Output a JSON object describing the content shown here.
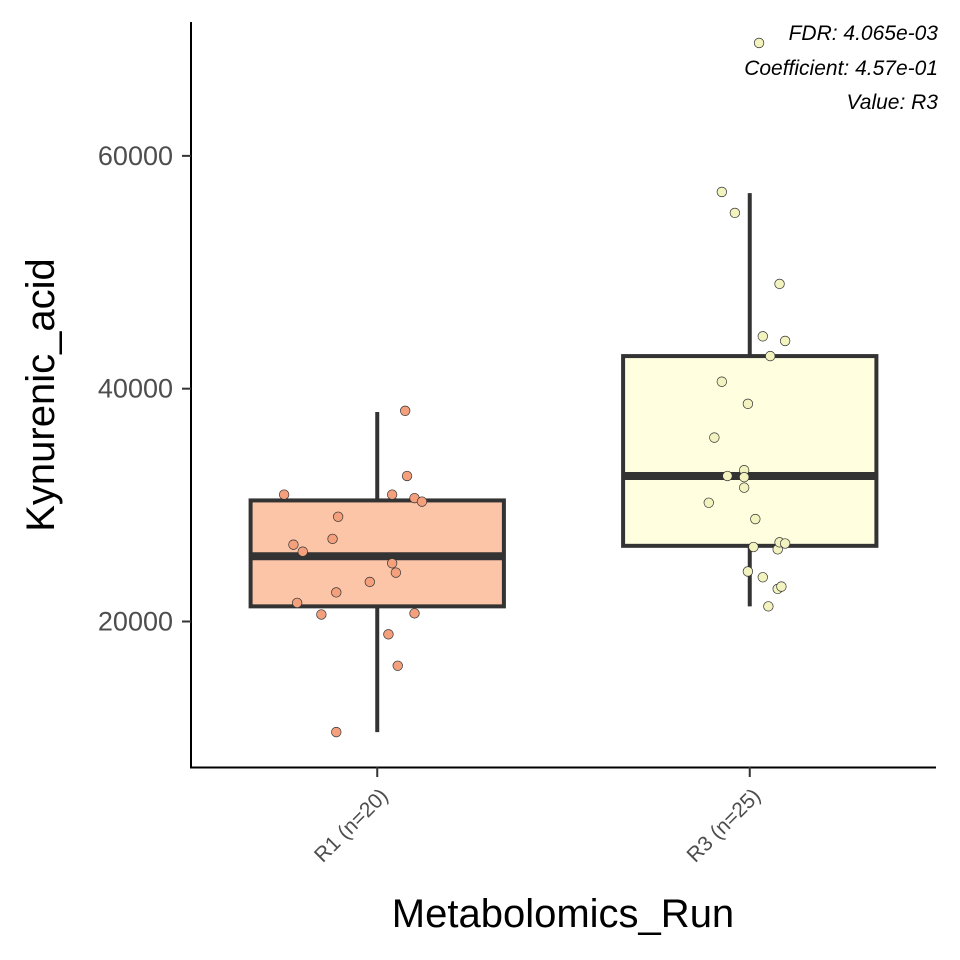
{
  "chart_data": {
    "type": "box",
    "xlabel": "Metabolomics_Run",
    "ylabel": "Kynurenic_acid",
    "ylim": [
      7500,
      71500
    ],
    "yticks": [
      20000,
      40000,
      60000
    ],
    "ytick_labels": [
      "20000",
      "40000",
      "60000"
    ],
    "grid": false,
    "annotations": [
      "FDR: 4.065e-03",
      "Coefficient: 4.57e-01",
      "Value: R3"
    ],
    "groups": [
      {
        "label": "R1 (n=20)",
        "color": "#FCC5A8",
        "point_color": "#F4A07C",
        "box": {
          "whisker_low": 10500,
          "q1": 21300,
          "median": 25600,
          "q3": 30400,
          "whisker_high": 38000
        },
        "points": [
          {
            "jitter": -0.5,
            "value": 30900
          },
          {
            "jitter": -0.45,
            "value": 26600
          },
          {
            "jitter": -0.4,
            "value": 26000
          },
          {
            "jitter": -0.43,
            "value": 21600
          },
          {
            "jitter": -0.3,
            "value": 20600
          },
          {
            "jitter": -0.21,
            "value": 29000
          },
          {
            "jitter": -0.22,
            "value": 22500
          },
          {
            "jitter": -0.22,
            "value": 10500
          },
          {
            "jitter": -0.24,
            "value": 27100
          },
          {
            "jitter": -0.04,
            "value": 23400
          },
          {
            "jitter": 0.06,
            "value": 18900
          },
          {
            "jitter": 0.08,
            "value": 30900
          },
          {
            "jitter": 0.08,
            "value": 25000
          },
          {
            "jitter": 0.1,
            "value": 24200
          },
          {
            "jitter": 0.11,
            "value": 16200
          },
          {
            "jitter": 0.15,
            "value": 38100
          },
          {
            "jitter": 0.16,
            "value": 32500
          },
          {
            "jitter": 0.2,
            "value": 30600
          },
          {
            "jitter": 0.2,
            "value": 20700
          },
          {
            "jitter": 0.24,
            "value": 30300
          }
        ]
      },
      {
        "label": "R3 (n=25)",
        "color": "#FFFFE0",
        "point_color": "#F3F3C0",
        "box": {
          "whisker_low": 21300,
          "q1": 26500,
          "median": 32500,
          "q3": 42800,
          "whisker_high": 56800
        },
        "points": [
          {
            "jitter": -0.22,
            "value": 30200
          },
          {
            "jitter": -0.19,
            "value": 35800
          },
          {
            "jitter": -0.15,
            "value": 56900
          },
          {
            "jitter": -0.15,
            "value": 40600
          },
          {
            "jitter": -0.12,
            "value": 32500
          },
          {
            "jitter": -0.08,
            "value": 55100
          },
          {
            "jitter": -0.03,
            "value": 33000
          },
          {
            "jitter": -0.03,
            "value": 32400
          },
          {
            "jitter": -0.03,
            "value": 31500
          },
          {
            "jitter": -0.01,
            "value": 38700
          },
          {
            "jitter": -0.01,
            "value": 24300
          },
          {
            "jitter": 0.02,
            "value": 26400
          },
          {
            "jitter": 0.03,
            "value": 28800
          },
          {
            "jitter": 0.05,
            "value": 69700
          },
          {
            "jitter": 0.07,
            "value": 44500
          },
          {
            "jitter": 0.07,
            "value": 23800
          },
          {
            "jitter": 0.1,
            "value": 21300
          },
          {
            "jitter": 0.11,
            "value": 42800
          },
          {
            "jitter": 0.15,
            "value": 26200
          },
          {
            "jitter": 0.15,
            "value": 22800
          },
          {
            "jitter": 0.16,
            "value": 26800
          },
          {
            "jitter": 0.16,
            "value": 49000
          },
          {
            "jitter": 0.17,
            "value": 23000
          },
          {
            "jitter": 0.19,
            "value": 44100
          },
          {
            "jitter": 0.19,
            "value": 26700
          }
        ]
      }
    ]
  }
}
